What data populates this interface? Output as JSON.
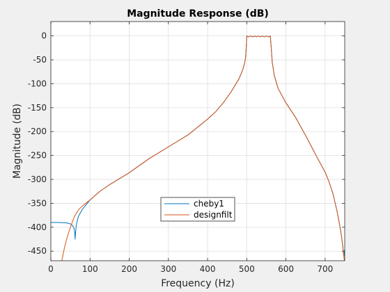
{
  "figure": {
    "background": "#f0f0f0"
  },
  "chart_data": {
    "type": "line",
    "title": "Magnitude Response (dB)",
    "xlabel": "Frequency (Hz)",
    "ylabel": "Magnitude (dB)",
    "xlim": [
      0,
      750
    ],
    "ylim": [
      -470,
      30
    ],
    "xticks": [
      0,
      100,
      200,
      300,
      400,
      500,
      600,
      700
    ],
    "yticks": [
      0,
      -50,
      -100,
      -150,
      -200,
      -250,
      -300,
      -350,
      -400,
      -450
    ],
    "xtick_labels": [
      "0",
      "100",
      "200",
      "300",
      "400",
      "500",
      "600",
      "700"
    ],
    "ytick_labels": [
      "0",
      "-50",
      "-100",
      "-150",
      "-200",
      "-250",
      "-300",
      "-350",
      "-400",
      "-450"
    ],
    "grid": true,
    "legend": {
      "location": "lower-center-inside"
    },
    "series": [
      {
        "name": "cheby1",
        "color": "#0072bd",
        "points": [
          [
            0,
            -390
          ],
          [
            20,
            -390
          ],
          [
            40,
            -391
          ],
          [
            50,
            -393
          ],
          [
            56,
            -397
          ],
          [
            59,
            -402
          ],
          [
            61,
            -410
          ],
          [
            62,
            -425
          ],
          [
            63,
            -412
          ],
          [
            65,
            -395
          ],
          [
            70,
            -378
          ],
          [
            80,
            -363
          ],
          [
            100,
            -343
          ],
          [
            125,
            -325
          ],
          [
            150,
            -311
          ],
          [
            200,
            -286
          ],
          [
            250,
            -257
          ],
          [
            300,
            -232
          ],
          [
            350,
            -207
          ],
          [
            400,
            -174
          ],
          [
            420,
            -159
          ],
          [
            440,
            -140
          ],
          [
            460,
            -117
          ],
          [
            480,
            -90
          ],
          [
            490,
            -70
          ],
          [
            495,
            -55
          ],
          [
            497,
            -45
          ],
          [
            499,
            -20
          ],
          [
            500,
            0
          ],
          [
            505,
            -2
          ],
          [
            510,
            0
          ],
          [
            515,
            -2
          ],
          [
            520,
            0
          ],
          [
            525,
            -2
          ],
          [
            530,
            0
          ],
          [
            535,
            -2
          ],
          [
            540,
            0
          ],
          [
            545,
            -2
          ],
          [
            550,
            0
          ],
          [
            555,
            -2
          ],
          [
            560,
            0
          ],
          [
            562,
            -20
          ],
          [
            565,
            -55
          ],
          [
            570,
            -82
          ],
          [
            580,
            -110
          ],
          [
            600,
            -140
          ],
          [
            625,
            -171
          ],
          [
            650,
            -208
          ],
          [
            675,
            -247
          ],
          [
            700,
            -285
          ],
          [
            710,
            -305
          ],
          [
            720,
            -330
          ],
          [
            730,
            -365
          ],
          [
            737,
            -395
          ],
          [
            742,
            -420
          ],
          [
            745,
            -440
          ],
          [
            747,
            -455
          ],
          [
            748,
            -460
          ],
          [
            749,
            -450
          ],
          [
            750,
            -447
          ]
        ]
      },
      {
        "name": "designfilt",
        "color": "#d95319",
        "points": [
          [
            28,
            -470
          ],
          [
            35,
            -442
          ],
          [
            42,
            -420
          ],
          [
            50,
            -400
          ],
          [
            60,
            -378
          ],
          [
            70,
            -364
          ],
          [
            80,
            -356
          ],
          [
            100,
            -343
          ],
          [
            125,
            -325
          ],
          [
            150,
            -311
          ],
          [
            200,
            -286
          ],
          [
            250,
            -257
          ],
          [
            300,
            -232
          ],
          [
            350,
            -207
          ],
          [
            400,
            -174
          ],
          [
            420,
            -159
          ],
          [
            440,
            -140
          ],
          [
            460,
            -117
          ],
          [
            480,
            -90
          ],
          [
            490,
            -70
          ],
          [
            495,
            -55
          ],
          [
            497,
            -45
          ],
          [
            499,
            -20
          ],
          [
            500,
            0
          ],
          [
            505,
            -2
          ],
          [
            510,
            0
          ],
          [
            515,
            -2
          ],
          [
            520,
            0
          ],
          [
            525,
            -2
          ],
          [
            530,
            0
          ],
          [
            535,
            -2
          ],
          [
            540,
            0
          ],
          [
            545,
            -2
          ],
          [
            550,
            0
          ],
          [
            555,
            -2
          ],
          [
            560,
            0
          ],
          [
            562,
            -20
          ],
          [
            565,
            -55
          ],
          [
            570,
            -82
          ],
          [
            580,
            -110
          ],
          [
            600,
            -140
          ],
          [
            625,
            -171
          ],
          [
            650,
            -208
          ],
          [
            675,
            -247
          ],
          [
            700,
            -285
          ],
          [
            710,
            -305
          ],
          [
            720,
            -330
          ],
          [
            730,
            -365
          ],
          [
            737,
            -395
          ],
          [
            742,
            -420
          ],
          [
            745,
            -440
          ],
          [
            747,
            -455
          ],
          [
            749,
            -470
          ]
        ]
      }
    ]
  }
}
